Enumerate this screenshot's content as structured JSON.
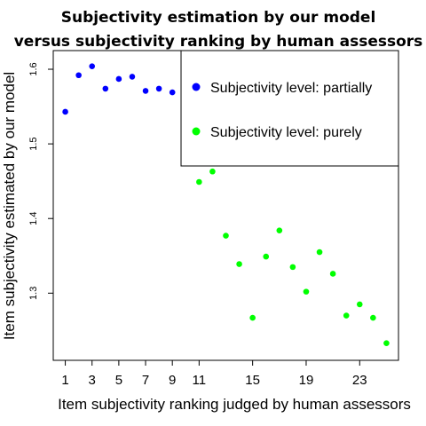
{
  "chart_data": {
    "type": "scatter",
    "title": "Subjectivity estimation by our model versus subjectivity ranking by human assessors",
    "title_lines": [
      "Subjectivity estimation by our model",
      "versus subjectivity ranking by human assessors"
    ],
    "xlabel": "Item subjectivity ranking judged by human assessors",
    "ylabel": "Item subjectivity estimated by our model",
    "xlim": [
      0.1,
      25.9
    ],
    "ylim": [
      1.21,
      1.625
    ],
    "xticks": [
      1,
      3,
      5,
      7,
      9,
      11,
      15,
      19,
      23
    ],
    "yticks": [
      1.3,
      1.4,
      1.5,
      1.6
    ],
    "ytick_labels": [
      "1.3",
      "1.4",
      "1.5",
      "1.6"
    ],
    "legend_position": "top-right",
    "grid": false,
    "series": [
      {
        "name": "Subjectivity level: partially",
        "color": "#0000ff",
        "points": [
          {
            "x": 1,
            "y": 1.543
          },
          {
            "x": 2,
            "y": 1.592
          },
          {
            "x": 3,
            "y": 1.604
          },
          {
            "x": 4,
            "y": 1.574
          },
          {
            "x": 5,
            "y": 1.587
          },
          {
            "x": 6,
            "y": 1.59
          },
          {
            "x": 7,
            "y": 1.571
          },
          {
            "x": 8,
            "y": 1.574
          },
          {
            "x": 9,
            "y": 1.569
          }
        ]
      },
      {
        "name": "Subjectivity level: purely",
        "color": "#00ff00",
        "points": [
          {
            "x": 11,
            "y": 1.449
          },
          {
            "x": 12,
            "y": 1.463
          },
          {
            "x": 13,
            "y": 1.377
          },
          {
            "x": 14,
            "y": 1.339
          },
          {
            "x": 15,
            "y": 1.267
          },
          {
            "x": 16,
            "y": 1.349
          },
          {
            "x": 17,
            "y": 1.384
          },
          {
            "x": 18,
            "y": 1.335
          },
          {
            "x": 19,
            "y": 1.302
          },
          {
            "x": 20,
            "y": 1.355
          },
          {
            "x": 21,
            "y": 1.326
          },
          {
            "x": 22,
            "y": 1.27
          },
          {
            "x": 23,
            "y": 1.285
          },
          {
            "x": 24,
            "y": 1.267
          },
          {
            "x": 25,
            "y": 1.233
          }
        ]
      }
    ]
  }
}
